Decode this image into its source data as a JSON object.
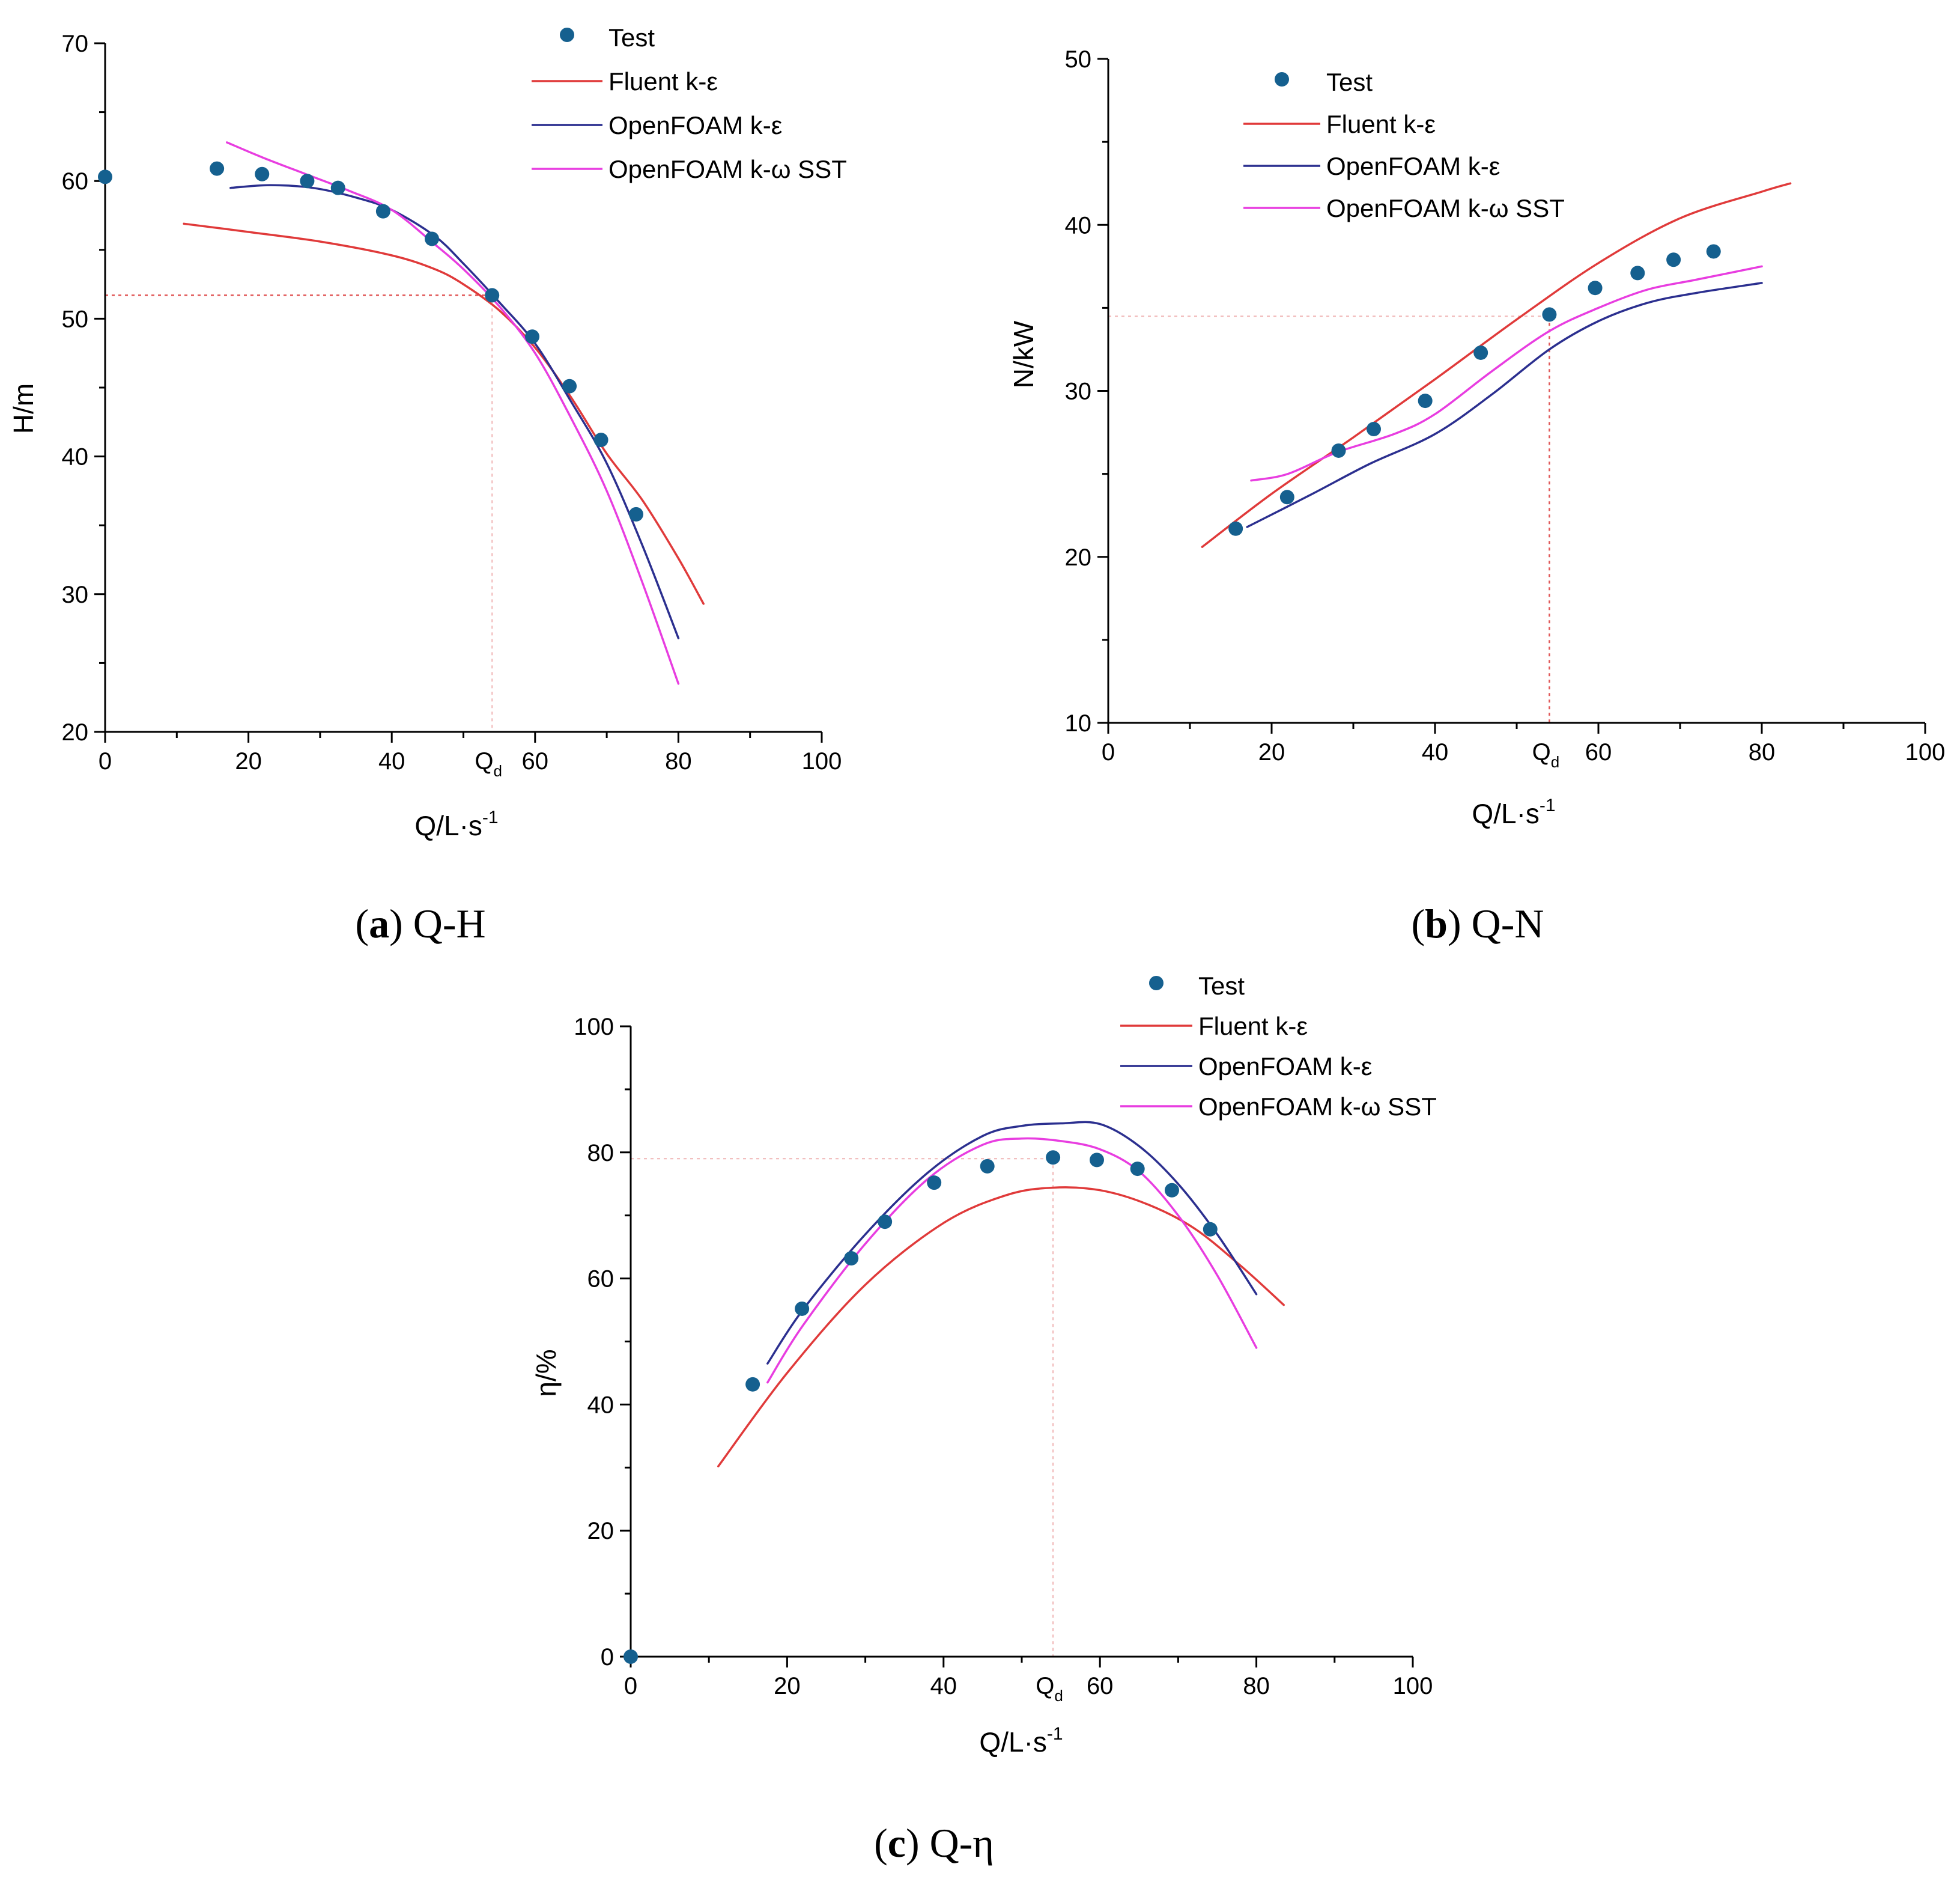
{
  "colors": {
    "test": "#15608f",
    "fluent": "#e03a3a",
    "of_ke": "#2b2f8f",
    "of_sst": "#e83de0"
  },
  "chart_data": [
    {
      "id": "a",
      "type": "line",
      "caption_letter": "a",
      "caption_text": " Q-H",
      "xlabel": "Q/L·s",
      "xlabel_sup": "-1",
      "ylabel": "H/m",
      "xlim": [
        0,
        100
      ],
      "ylim": [
        20,
        70
      ],
      "xticks": [
        0,
        20,
        40,
        60,
        80,
        100
      ],
      "yticks": [
        20,
        30,
        40,
        50,
        60,
        70
      ],
      "design_flow": 54,
      "design_value": 51.7,
      "qd_label": "Q",
      "qd_sub": "d",
      "legend": {
        "test": "Test",
        "fluent": "Fluent k-ε",
        "of_ke": "OpenFOAM k-ε",
        "of_sst": "OpenFOAM k-ω SST"
      },
      "series": [
        {
          "key": "test",
          "name": "Test",
          "kind": "scatter",
          "x": [
            0,
            15.6,
            21.9,
            28.2,
            32.5,
            38.8,
            45.6,
            54,
            59.6,
            64.8,
            69.2,
            74.1
          ],
          "y": [
            60.3,
            60.9,
            60.5,
            60.0,
            59.5,
            57.8,
            55.8,
            51.7,
            48.7,
            45.1,
            41.2,
            35.8
          ]
        },
        {
          "key": "fluent",
          "name": "Fluent k-ε",
          "kind": "line",
          "x": [
            11,
            20,
            30,
            40,
            46,
            50,
            55,
            60,
            65,
            70,
            75,
            80,
            83.5
          ],
          "y": [
            56.9,
            56.3,
            55.6,
            54.6,
            53.6,
            52.5,
            50.6,
            47.9,
            44.3,
            40.2,
            36.8,
            32.6,
            29.3
          ]
        },
        {
          "key": "of_ke",
          "name": "OpenFOAM k-ε",
          "kind": "line",
          "x": [
            17.5,
            23,
            29,
            35,
            40,
            46,
            50,
            55,
            60,
            65,
            70,
            75,
            80
          ],
          "y": [
            59.5,
            59.7,
            59.5,
            58.8,
            57.9,
            56.0,
            54.0,
            51.2,
            48.2,
            44.0,
            39.5,
            33.5,
            26.8
          ]
        },
        {
          "key": "of_sst",
          "name": "OpenFOAM k-ω SST",
          "kind": "line",
          "x": [
            17,
            22,
            28,
            34,
            40,
            46,
            50,
            55,
            60,
            65,
            70,
            75,
            80
          ],
          "y": [
            62.8,
            61.7,
            60.5,
            59.3,
            57.9,
            55.4,
            53.6,
            50.9,
            47.5,
            42.8,
            37.5,
            30.8,
            23.5
          ]
        }
      ]
    },
    {
      "id": "b",
      "type": "line",
      "caption_letter": "b",
      "caption_text": " Q-N",
      "xlabel": "Q/L·s",
      "xlabel_sup": "-1",
      "ylabel": "N/kW",
      "xlim": [
        0,
        100
      ],
      "ylim": [
        10,
        50
      ],
      "xticks": [
        0,
        20,
        40,
        60,
        80,
        100
      ],
      "yticks": [
        10,
        20,
        30,
        40,
        50
      ],
      "design_flow": 54,
      "design_value": 34.5,
      "qd_label": "Q",
      "qd_sub": "d",
      "legend": {
        "test": "Test",
        "fluent": "Fluent k-ε",
        "of_ke": "OpenFOAM k-ε",
        "of_sst": "OpenFOAM k-ω SST"
      },
      "series": [
        {
          "key": "test",
          "name": "Test",
          "kind": "scatter",
          "x": [
            15.6,
            21.9,
            28.2,
            32.5,
            38.8,
            45.6,
            54,
            59.6,
            64.8,
            69.2,
            74.1
          ],
          "y": [
            21.7,
            23.6,
            26.4,
            27.7,
            29.4,
            32.3,
            34.6,
            36.2,
            37.1,
            37.9,
            38.4
          ]
        },
        {
          "key": "fluent",
          "name": "Fluent k-ε",
          "kind": "line",
          "x": [
            11.5,
            20,
            30,
            40,
            50,
            60,
            70,
            80,
            83.5
          ],
          "y": [
            20.6,
            23.8,
            27.2,
            30.7,
            34.3,
            37.7,
            40.4,
            42.0,
            42.5
          ]
        },
        {
          "key": "of_ke",
          "name": "OpenFOAM k-ε",
          "kind": "line",
          "x": [
            17,
            25,
            32,
            40,
            47,
            54,
            60,
            66,
            72,
            80
          ],
          "y": [
            21.8,
            23.8,
            25.6,
            27.4,
            29.8,
            32.5,
            34.2,
            35.3,
            35.9,
            36.5
          ]
        },
        {
          "key": "of_sst",
          "name": "OpenFOAM k-ω SST",
          "kind": "line",
          "x": [
            17.5,
            22,
            28,
            35,
            40,
            47,
            54,
            60,
            66,
            72,
            80
          ],
          "y": [
            24.6,
            25.0,
            26.3,
            27.4,
            28.6,
            31.2,
            33.6,
            35.0,
            36.1,
            36.7,
            37.5
          ]
        }
      ]
    },
    {
      "id": "c",
      "type": "line",
      "caption_letter": "c",
      "caption_text": " Q-η",
      "xlabel": "Q/L·s",
      "xlabel_sup": "-1",
      "ylabel": "η/%",
      "xlim": [
        0,
        100
      ],
      "ylim": [
        0,
        100
      ],
      "xticks": [
        0,
        20,
        40,
        60,
        80,
        100
      ],
      "yticks": [
        0,
        20,
        40,
        60,
        80,
        100
      ],
      "design_flow": 54,
      "design_value": 79,
      "qd_label": "Q",
      "qd_sub": "d",
      "legend": {
        "test": "Test",
        "fluent": "Fluent k-ε",
        "of_ke": "OpenFOAM k-ε",
        "of_sst": "OpenFOAM k-ω SST"
      },
      "series": [
        {
          "key": "test",
          "name": "Test",
          "kind": "scatter",
          "x": [
            0,
            15.6,
            21.9,
            28.2,
            32.5,
            38.8,
            45.6,
            54,
            59.6,
            64.8,
            69.2,
            74.1
          ],
          "y": [
            0,
            43.2,
            55.2,
            63.2,
            69.0,
            75.2,
            77.8,
            79.2,
            78.8,
            77.4,
            74.0,
            67.8
          ]
        },
        {
          "key": "fluent",
          "name": "Fluent k-ε",
          "kind": "line",
          "x": [
            11.2,
            20,
            30,
            40,
            48,
            54,
            60,
            66,
            72,
            78,
            83.5
          ],
          "y": [
            30.2,
            45.0,
            59.0,
            68.8,
            73.2,
            74.4,
            74.0,
            71.8,
            68.0,
            62.0,
            55.8
          ]
        },
        {
          "key": "of_ke",
          "name": "OpenFOAM k-ε",
          "kind": "line",
          "x": [
            17.5,
            22,
            30,
            38,
            45,
            50,
            55,
            60,
            65,
            70,
            75,
            80
          ],
          "y": [
            46.5,
            55.0,
            67.0,
            76.8,
            82.6,
            84.2,
            84.6,
            84.5,
            81.0,
            75.0,
            67.0,
            57.5
          ]
        },
        {
          "key": "of_sst",
          "name": "OpenFOAM k-ω SST",
          "kind": "line",
          "x": [
            17.5,
            22,
            30,
            38,
            45,
            50,
            55,
            60,
            65,
            70,
            75,
            80
          ],
          "y": [
            43.5,
            52.5,
            65.5,
            75.8,
            81.2,
            82.2,
            81.8,
            80.5,
            77.0,
            70.0,
            60.5,
            49.0
          ]
        }
      ]
    }
  ]
}
